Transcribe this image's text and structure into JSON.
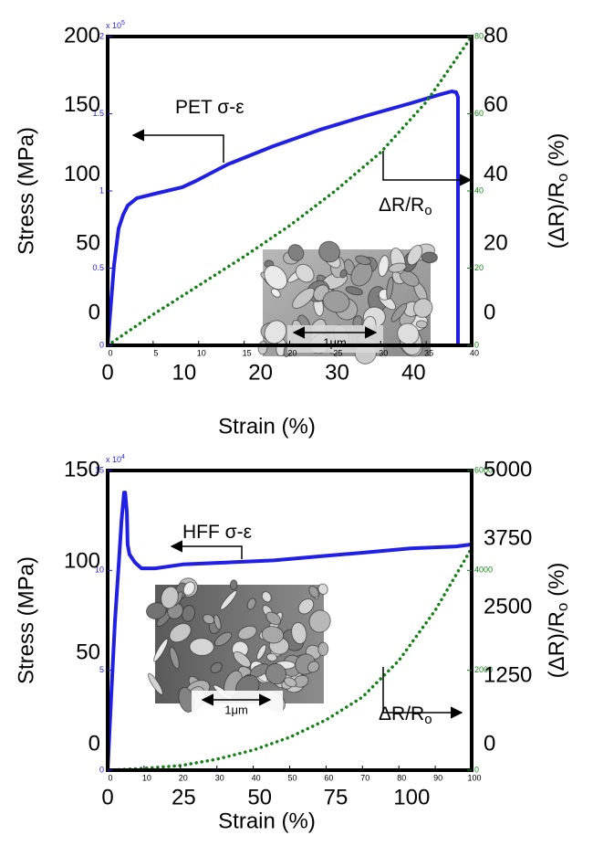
{
  "chart_data": [
    {
      "type": "line",
      "x_title": "Strain (%)",
      "y_title": "Stress (MPa)",
      "y2_title": [
        "(ΔR)/R",
        "o",
        " (%)"
      ],
      "xlim": [
        0,
        40
      ],
      "xticks": [
        0,
        5,
        10,
        15,
        20,
        25,
        30,
        35,
        40
      ],
      "ylim": [
        0,
        2
      ],
      "yticks": [
        0,
        0.5,
        1,
        1.5,
        2
      ],
      "y_multiplier": [
        "x 10",
        "5"
      ],
      "y2lim": [
        0,
        80
      ],
      "y2ticks": [
        0,
        20,
        40,
        60,
        80
      ],
      "outer_xlim": [
        0,
        47.6
      ],
      "outer_xticks": [
        0,
        10,
        20,
        30,
        40
      ],
      "outer_ylim": [
        -23.1,
        200
      ],
      "outer_yticks": [
        0,
        50,
        100,
        150,
        200
      ],
      "outer_y2lim": [
        -9.2,
        80
      ],
      "outer_y2ticks": [
        0,
        20,
        40,
        60,
        80
      ],
      "series": [
        {
          "color": "#1f1fe6",
          "axis": "y",
          "style": "solid",
          "x": [
            0,
            0.3,
            0.7,
            1.2,
            1.7,
            2.2,
            3.2,
            5.2,
            8.2,
            9.7,
            13.2,
            18.2,
            23.3,
            28.3,
            33.3,
            36.3,
            37.8,
            38.3,
            38.5,
            38.5
          ],
          "values": [
            0,
            0.225,
            0.52,
            0.757,
            0.846,
            0.905,
            0.953,
            0.982,
            1.024,
            1.065,
            1.172,
            1.29,
            1.396,
            1.485,
            1.568,
            1.621,
            1.645,
            1.639,
            1.609,
            0
          ]
        },
        {
          "color": "#148214",
          "axis": "y2",
          "style": "dotted",
          "x": [
            0,
            5,
            10,
            15,
            20,
            25,
            30,
            35,
            40
          ],
          "values": [
            0,
            8,
            15.5,
            23,
            31,
            40,
            50,
            63,
            80
          ]
        }
      ],
      "annotations": [
        [
          "PET σ-ε"
        ],
        [
          "ΔR/R",
          "o"
        ]
      ],
      "inset_label": "1μm"
    },
    {
      "type": "line",
      "x_title": "Strain (%)",
      "y_title": "Stress (MPa)",
      "y2_title": [
        "(ΔR)/R",
        "o",
        " (%)"
      ],
      "xlim": [
        0,
        100
      ],
      "xticks": [
        0,
        10,
        20,
        30,
        40,
        50,
        60,
        70,
        80,
        90,
        100
      ],
      "ylim": [
        0,
        15
      ],
      "yticks": [
        0,
        5,
        10,
        15
      ],
      "y_multiplier": [
        "x 10",
        "4"
      ],
      "y2lim": [
        0,
        6000
      ],
      "y2ticks": [
        0,
        2000,
        4000,
        6000
      ],
      "outer_xlim": [
        0,
        119.7
      ],
      "outer_xticks": [
        0,
        25,
        50,
        75,
        100
      ],
      "outer_ylim": [
        -14,
        150
      ],
      "outer_yticks": [
        0,
        50,
        100,
        150
      ],
      "outer_y2lim": [
        -467,
        5000
      ],
      "outer_y2ticks": [
        0,
        1250,
        2500,
        3750,
        5000
      ],
      "series": [
        {
          "color": "#1f1fe6",
          "axis": "y",
          "style": "solid",
          "x": [
            0,
            1.0,
            2.0,
            3.0,
            3.8,
            4.5,
            4.8,
            5.3,
            5.5,
            6.0,
            7.5,
            9.3,
            13.0,
            20.6,
            33.1,
            45.6,
            58.1,
            70.7,
            83.2,
            95.7,
            100
          ],
          "values": [
            0,
            3.8,
            7.45,
            10.2,
            12.5,
            13.9,
            13.9,
            12.9,
            11.3,
            10.8,
            10.4,
            10.1,
            10.1,
            10.3,
            10.4,
            10.5,
            10.7,
            10.9,
            11.1,
            11.2,
            11.3
          ]
        },
        {
          "color": "#148214",
          "axis": "y2",
          "style": "dotted",
          "x": [
            0,
            10,
            20,
            30,
            40,
            50,
            60,
            70,
            80,
            90,
            100
          ],
          "values": [
            0,
            37,
            91,
            220,
            402,
            658,
            1006,
            1463,
            2195,
            3201,
            4445
          ]
        }
      ],
      "annotations": [
        [
          "HFF σ-ε"
        ],
        [
          "ΔR/R",
          "o"
        ]
      ],
      "inset_label": "1μm"
    }
  ]
}
